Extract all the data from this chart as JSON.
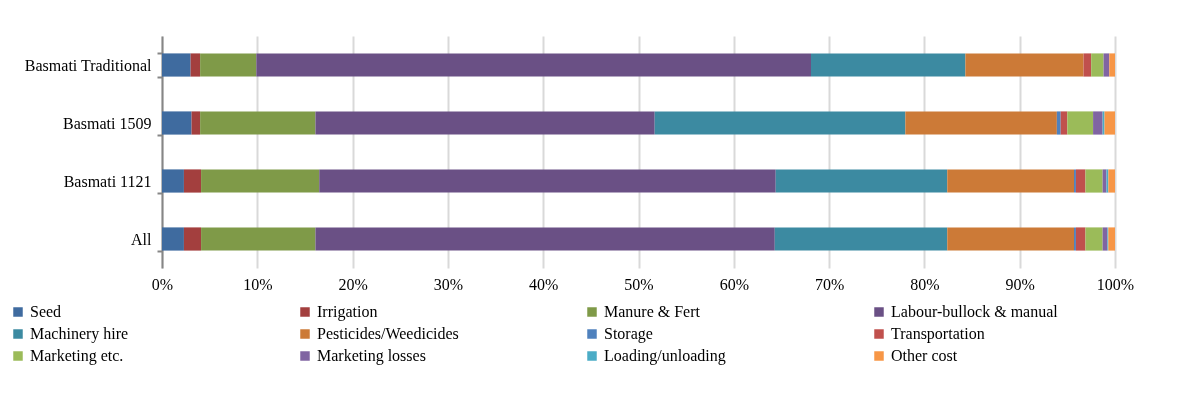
{
  "chart_data": {
    "type": "bar",
    "orientation": "horizontal",
    "stacked": true,
    "categories": [
      "Basmati Traditional",
      "Basmati 1509",
      "Basmati 1121",
      "All"
    ],
    "series": [
      {
        "name": "Seed",
        "color": "#3f6b9f",
        "values": [
          3.0,
          3.1,
          2.3,
          2.3
        ]
      },
      {
        "name": "Irrigation",
        "color": "#a33f3e",
        "values": [
          1.0,
          0.9,
          1.8,
          1.8
        ]
      },
      {
        "name": "Manure & Fert",
        "color": "#7f9a48",
        "values": [
          5.9,
          12.1,
          12.4,
          12.0
        ]
      },
      {
        "name": "Labour-bullock & manual",
        "color": "#6a5085",
        "values": [
          58.2,
          35.6,
          47.9,
          48.2
        ]
      },
      {
        "name": "Machinery hire",
        "color": "#3c8aa1",
        "values": [
          16.2,
          26.3,
          18.0,
          18.1
        ]
      },
      {
        "name": "Pesticides/Weedicides",
        "color": "#cc7a37",
        "values": [
          12.4,
          15.9,
          13.3,
          13.3
        ]
      },
      {
        "name": "Storage",
        "color": "#4f81bd",
        "values": [
          0,
          0.4,
          0.2,
          0.2
        ]
      },
      {
        "name": "Transportation",
        "color": "#c0504d",
        "values": [
          0.8,
          0.7,
          1.0,
          1.0
        ]
      },
      {
        "name": "Marketing etc.",
        "color": "#9bbb59",
        "values": [
          1.3,
          2.7,
          1.8,
          1.8
        ]
      },
      {
        "name": "Marketing losses",
        "color": "#8064a2",
        "values": [
          0.6,
          1.0,
          0.4,
          0.5
        ]
      },
      {
        "name": "Loading/unloading",
        "color": "#4bacc6",
        "values": [
          0,
          0.2,
          0.2,
          0.1
        ]
      },
      {
        "name": "Other cost",
        "color": "#f79646",
        "values": [
          0.6,
          1.1,
          0.7,
          0.7
        ]
      }
    ],
    "xlim": [
      0,
      100
    ],
    "xticks": [
      {
        "value": 0,
        "label": "0%"
      },
      {
        "value": 10,
        "label": "10%"
      },
      {
        "value": 20,
        "label": "20%"
      },
      {
        "value": 30,
        "label": "30%"
      },
      {
        "value": 40,
        "label": "40%"
      },
      {
        "value": 50,
        "label": "50%"
      },
      {
        "value": 60,
        "label": "60%"
      },
      {
        "value": 70,
        "label": "70%"
      },
      {
        "value": 80,
        "label": "80%"
      },
      {
        "value": 90,
        "label": "90%"
      },
      {
        "value": 100,
        "label": "100%"
      }
    ],
    "grid": "x",
    "legend": "bottom"
  }
}
